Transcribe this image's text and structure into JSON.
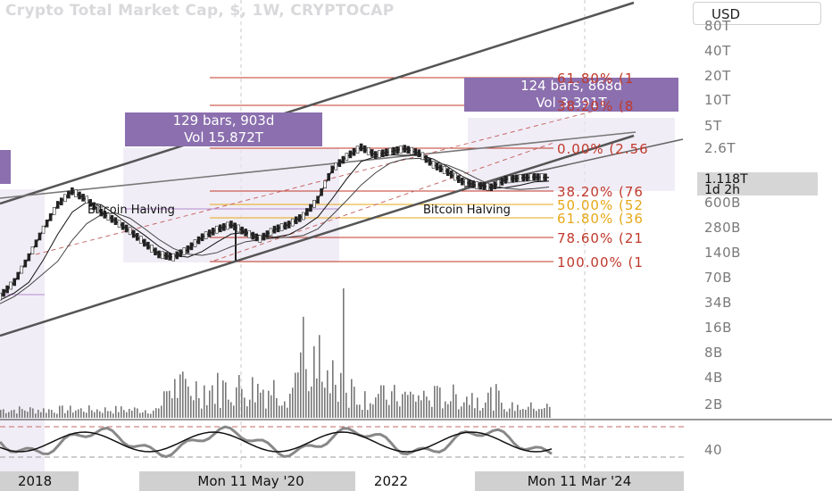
{
  "header": {
    "title": "Crypto Total Market Cap, $, 1W, CRYPTOCAP",
    "currency_button": "USD"
  },
  "price_scale": {
    "labels": [
      "80T",
      "40T",
      "20T",
      "10T",
      "5T",
      "2.6T",
      "600B",
      "280B",
      "140B",
      "70B",
      "34B",
      "16B",
      "8B",
      "4B",
      "2B"
    ],
    "current_price": "1.118T",
    "countdown": "1d 2h"
  },
  "oscillator_scale": {
    "label": "40"
  },
  "time_axis": {
    "labels": [
      "2018",
      "Mon 11 May '20",
      "2022",
      "Mon 11 Mar '24"
    ]
  },
  "annotations": {
    "range_box_1": {
      "line1": "129 bars, 903d",
      "line2": "Vol 15.872T"
    },
    "range_box_2": {
      "line1": "124 bars, 868d",
      "line2": "Vol 3.391T"
    },
    "halving_1": "Bitcoin Halving",
    "halving_2": "Bitcoin Halving"
  },
  "fibonacci_levels": [
    {
      "label": "61.80% (1",
      "color": "#c0392b"
    },
    {
      "label": "38.20% (8",
      "color": "#c0392b"
    },
    {
      "label": "0.00% (2.56",
      "color": "#c0392b"
    },
    {
      "label": "38.20% (76",
      "color": "#c0392b"
    },
    {
      "label": "50.00% (52",
      "color": "#e6a817"
    },
    {
      "label": "61.80% (36",
      "color": "#e6a817"
    },
    {
      "label": "78.60% (21",
      "color": "#c0392b"
    },
    {
      "label": "100.00% (1",
      "color": "#c0392b"
    }
  ],
  "chart_data": {
    "type": "line",
    "title": "Crypto Total Market Cap, $, 1W, CRYPTOCAP",
    "y_scale": "log",
    "y_tick_labels": [
      "80T",
      "40T",
      "20T",
      "10T",
      "5T",
      "2.6T",
      "600B",
      "280B",
      "140B",
      "70B",
      "34B",
      "16B",
      "8B",
      "4B",
      "2B"
    ],
    "x_tick_labels": [
      "2018",
      "Mon 11 May '20",
      "2022",
      "Mon 11 Mar '24"
    ],
    "last_value": "1.118T",
    "series": [
      {
        "values": [
          40,
          60,
          120,
          260,
          520,
          760,
          600,
          420,
          330,
          250,
          180,
          130,
          120,
          150,
          210,
          260,
          300,
          240,
          200,
          260,
          300,
          380,
          600,
          1400,
          2000,
          2600,
          2100,
          2300,
          2500,
          2200,
          1600,
          1300,
          1000,
          900,
          850,
          1050,
          1100,
          1130,
          1118
        ]
      }
    ],
    "measurements": [
      {
        "bars": "129 bars, 903d",
        "volume": "Vol 15.872T"
      },
      {
        "bars": "124 bars, 868d",
        "volume": "Vol 3.391T"
      }
    ],
    "events": [
      "Bitcoin Halving",
      "Bitcoin Halving"
    ]
  },
  "colors": {
    "accent_purple": "#8b6fae",
    "fib_red": "#c0392b",
    "fib_orange": "#e6a817"
  }
}
